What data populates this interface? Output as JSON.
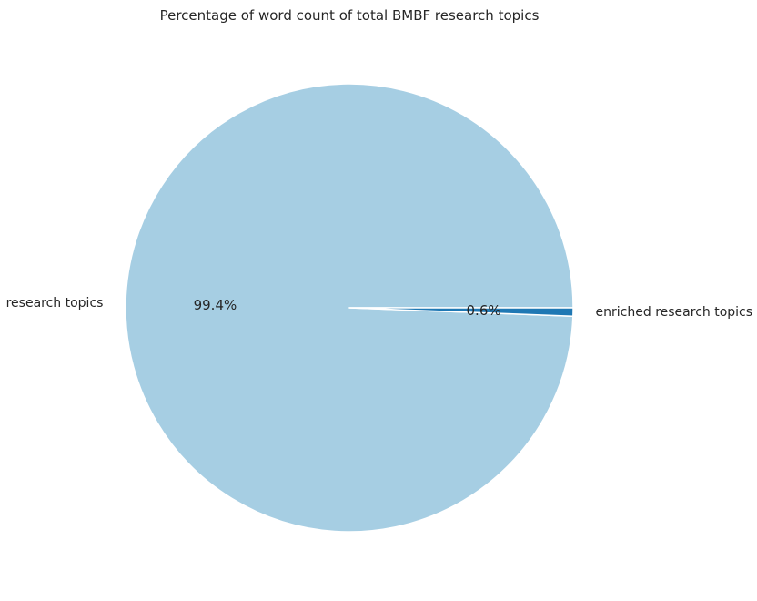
{
  "chart_data": {
    "type": "pie",
    "title": "Percentage of word count of total BMBF research topics",
    "slices": [
      {
        "label": "research topics",
        "value": 99.4,
        "pct_label": "99.4%",
        "color": "#a6cee3"
      },
      {
        "label": "enriched research topics",
        "value": 0.6,
        "pct_label": "0.6%",
        "color": "#1f78b4"
      }
    ],
    "start_angle_deg": 0,
    "direction": "counterclockwise",
    "wedge_edge_color": "#ffffff"
  }
}
